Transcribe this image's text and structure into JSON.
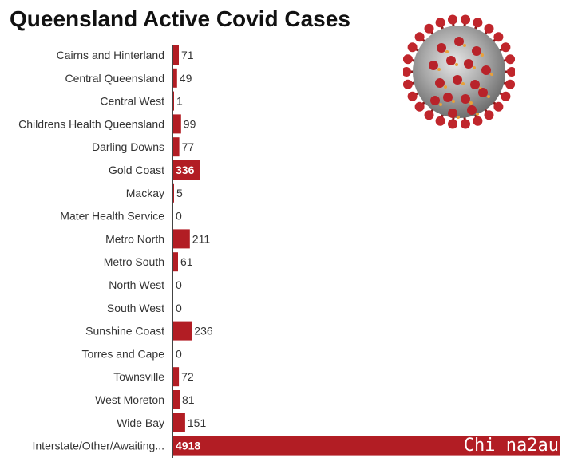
{
  "chart_data": {
    "type": "bar",
    "orientation": "horizontal",
    "title": "Queensland Active Covid Cases",
    "categories": [
      "Cairns and Hinterland",
      "Central Queensland",
      "Central West",
      "Childrens Health Queensland",
      "Darling Downs",
      "Gold Coast",
      "Mackay",
      "Mater Health Service",
      "Metro North",
      "Metro South",
      "North West",
      "South West",
      "Sunshine Coast",
      "Torres and Cape",
      "Townsville",
      "West Moreton",
      "Wide Bay",
      "Interstate/Other/Awaiting..."
    ],
    "values": [
      71,
      49,
      1,
      99,
      77,
      336,
      5,
      0,
      211,
      61,
      0,
      0,
      236,
      0,
      72,
      81,
      151,
      4918
    ],
    "xlim": [
      0,
      4918
    ],
    "bar_color": "#b21d24",
    "grid": false,
    "legend": "none"
  },
  "image": {
    "subject": "coronavirus-illustration"
  },
  "watermark": {
    "text": "Chi na2au"
  }
}
